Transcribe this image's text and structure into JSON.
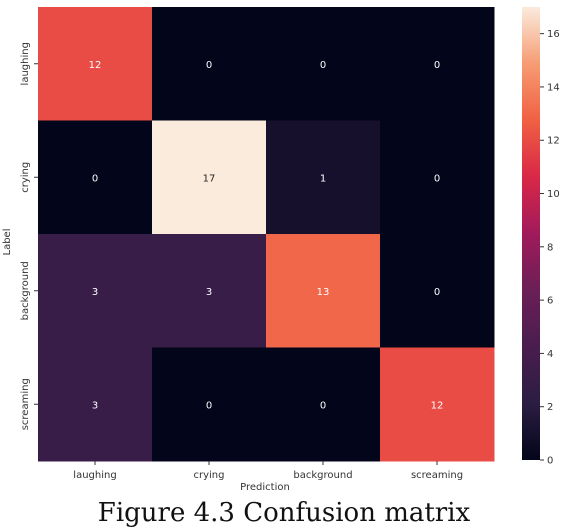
{
  "chart_data": {
    "type": "heatmap",
    "x_categories": [
      "laughing",
      "crying",
      "background",
      "screaming"
    ],
    "y_categories": [
      "laughing",
      "crying",
      "background",
      "screaming"
    ],
    "values": [
      [
        12,
        0,
        0,
        0
      ],
      [
        0,
        17,
        1,
        0
      ],
      [
        3,
        3,
        13,
        0
      ],
      [
        3,
        0,
        0,
        12
      ]
    ],
    "xlabel": "Prediction",
    "ylabel": "Label",
    "colorbar": {
      "min": 0,
      "max": 17,
      "ticks": [
        0,
        2,
        4,
        6,
        8,
        10,
        12,
        14,
        16
      ]
    },
    "colormap": "rocket",
    "annotations": true
  },
  "caption": "Figure 4.3 Confusion matrix"
}
